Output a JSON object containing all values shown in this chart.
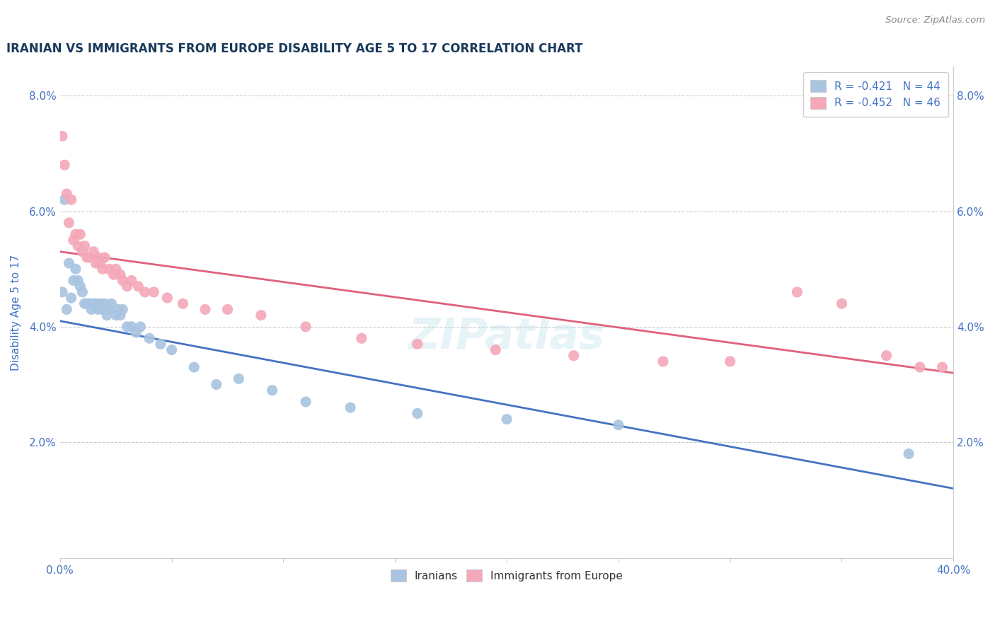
{
  "title": "IRANIAN VS IMMIGRANTS FROM EUROPE DISABILITY AGE 5 TO 17 CORRELATION CHART",
  "source": "Source: ZipAtlas.com",
  "ylabel": "Disability Age 5 to 17",
  "xlim": [
    0.0,
    0.4
  ],
  "ylim": [
    0.0,
    0.085
  ],
  "color_iranian": "#a8c4e0",
  "color_europe": "#f4a8b8",
  "line_color_iranian": "#4472c4",
  "line_color_europe": "#e0607a",
  "iranians_x": [
    0.001,
    0.002,
    0.003,
    0.004,
    0.005,
    0.006,
    0.007,
    0.008,
    0.009,
    0.01,
    0.011,
    0.012,
    0.013,
    0.014,
    0.015,
    0.016,
    0.017,
    0.018,
    0.019,
    0.02,
    0.021,
    0.022,
    0.023,
    0.025,
    0.026,
    0.027,
    0.028,
    0.03,
    0.032,
    0.034,
    0.036,
    0.04,
    0.045,
    0.05,
    0.06,
    0.07,
    0.08,
    0.095,
    0.11,
    0.13,
    0.16,
    0.2,
    0.25,
    0.38
  ],
  "iranians_y": [
    0.046,
    0.062,
    0.043,
    0.051,
    0.045,
    0.048,
    0.05,
    0.048,
    0.047,
    0.046,
    0.044,
    0.044,
    0.044,
    0.043,
    0.044,
    0.044,
    0.043,
    0.044,
    0.043,
    0.044,
    0.042,
    0.043,
    0.044,
    0.042,
    0.043,
    0.042,
    0.043,
    0.04,
    0.04,
    0.039,
    0.04,
    0.038,
    0.037,
    0.036,
    0.033,
    0.03,
    0.031,
    0.029,
    0.027,
    0.026,
    0.025,
    0.024,
    0.023,
    0.018
  ],
  "europe_x": [
    0.001,
    0.002,
    0.003,
    0.004,
    0.005,
    0.006,
    0.007,
    0.008,
    0.009,
    0.01,
    0.011,
    0.012,
    0.013,
    0.015,
    0.016,
    0.017,
    0.018,
    0.019,
    0.02,
    0.022,
    0.024,
    0.025,
    0.027,
    0.028,
    0.03,
    0.032,
    0.035,
    0.038,
    0.042,
    0.048,
    0.055,
    0.065,
    0.075,
    0.09,
    0.11,
    0.135,
    0.16,
    0.195,
    0.23,
    0.27,
    0.3,
    0.33,
    0.35,
    0.37,
    0.385,
    0.395
  ],
  "europe_y": [
    0.073,
    0.068,
    0.063,
    0.058,
    0.062,
    0.055,
    0.056,
    0.054,
    0.056,
    0.053,
    0.054,
    0.052,
    0.052,
    0.053,
    0.051,
    0.052,
    0.051,
    0.05,
    0.052,
    0.05,
    0.049,
    0.05,
    0.049,
    0.048,
    0.047,
    0.048,
    0.047,
    0.046,
    0.046,
    0.045,
    0.044,
    0.043,
    0.043,
    0.042,
    0.04,
    0.038,
    0.037,
    0.036,
    0.035,
    0.034,
    0.034,
    0.046,
    0.044,
    0.035,
    0.033,
    0.033
  ],
  "iran_line_x0": 0.0,
  "iran_line_y0": 0.041,
  "iran_line_x1": 0.4,
  "iran_line_y1": 0.012,
  "europe_line_x0": 0.0,
  "europe_line_y0": 0.053,
  "europe_line_x1": 0.4,
  "europe_line_y1": 0.032
}
